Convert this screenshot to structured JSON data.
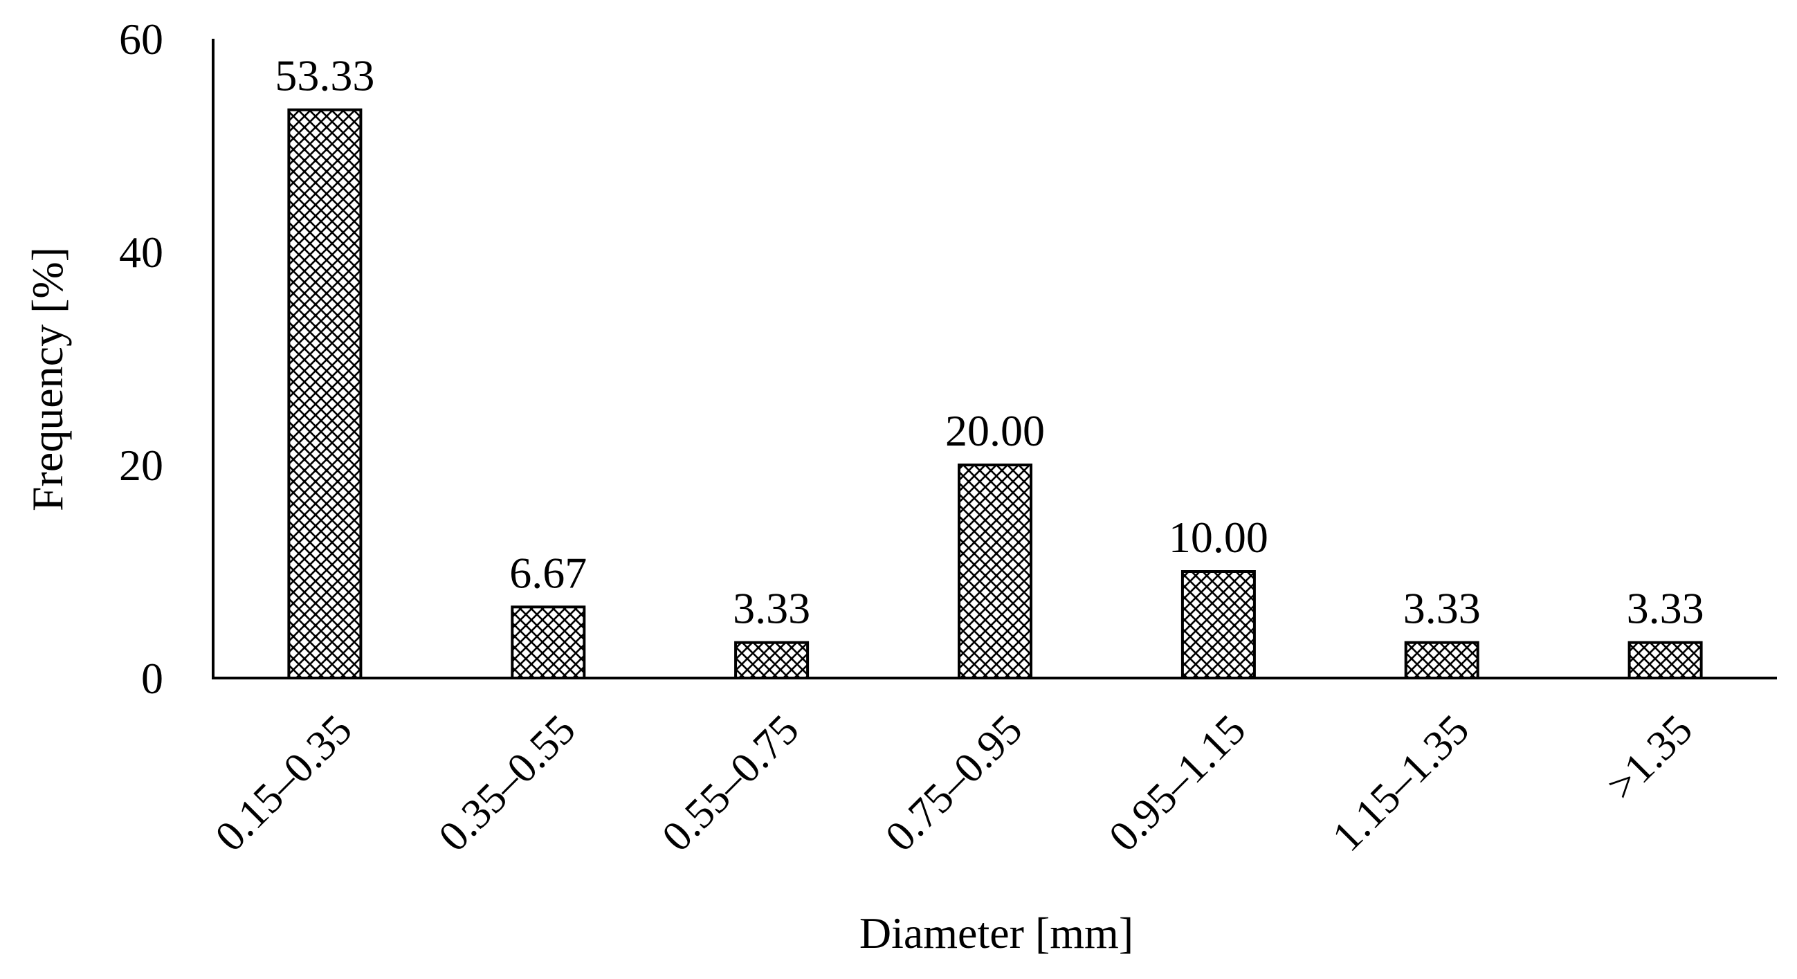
{
  "chart_data": {
    "type": "bar",
    "title": "",
    "xlabel": "Diameter [mm]",
    "ylabel": "Frequency [%]",
    "categories": [
      "0.15–0.35",
      "0.35–0.55",
      "0.55–0.75",
      "0.75–0.95",
      "0.95–1.15",
      "1.15–1.35",
      ">1.35"
    ],
    "values": [
      53.33,
      6.67,
      3.33,
      20.0,
      10.0,
      3.33,
      3.33
    ],
    "data_labels": [
      "53.33",
      "6.67",
      "3.33",
      "20.00",
      "10.00",
      "3.33",
      "3.33"
    ],
    "yticks": [
      0,
      20,
      40,
      60
    ],
    "ytick_labels": [
      "0",
      "20",
      "40",
      "60"
    ],
    "ylim": [
      0,
      60
    ],
    "grid": false,
    "legend": "none",
    "bar_fill": "crosshatch",
    "colors": {
      "bar_pattern": "#000000",
      "bar_background": "#ffffff",
      "axis": "#000000"
    }
  }
}
